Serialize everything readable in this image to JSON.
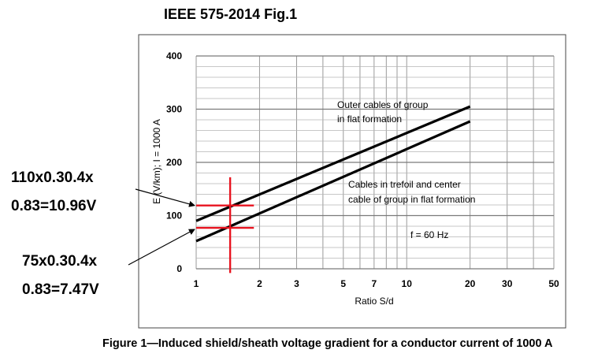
{
  "header": {
    "title": "IEEE 575-2014 Fig.1"
  },
  "caption": "Figure 1—Induced shield/sheath voltage gradient for a conductor current of 1000 A",
  "chart_data": {
    "type": "line",
    "xscale": "log",
    "xlabel": "Ratio S/d",
    "ylabel": "E (V/km); I = 1000 A",
    "xlim": [
      1,
      50
    ],
    "ylim": [
      0,
      400
    ],
    "x_ticks": [
      1,
      2,
      3,
      5,
      7,
      10,
      20,
      30,
      50
    ],
    "x_tick_labels": [
      "1",
      "2",
      "3",
      "5",
      "7",
      "10",
      "20",
      "30",
      "50"
    ],
    "y_ticks": [
      0,
      100,
      200,
      300,
      400
    ],
    "y_tick_labels": [
      "0",
      "100",
      "200",
      "300",
      "400"
    ],
    "grid": true,
    "series": [
      {
        "name": "Outer cables of group in flat formation",
        "label_lines": [
          "Outer cables of group",
          "in flat formation"
        ],
        "x": [
          1,
          20
        ],
        "y": [
          90,
          305
        ],
        "color": "#000000"
      },
      {
        "name": "Cables in trefoil and center cable of group in flat formation",
        "label_lines": [
          "Cables in trefoil and center",
          "cable of group in flat formation"
        ],
        "x": [
          1,
          20
        ],
        "y": [
          52,
          277
        ],
        "color": "#000000"
      }
    ],
    "frequency_note": "f = 60 Hz",
    "markers": {
      "color": "#e8131f",
      "vertical_x": 1.45,
      "vertical_y_range": [
        -8,
        172
      ],
      "horizontal": [
        {
          "y": 119,
          "x_range": [
            1,
            1.88
          ]
        },
        {
          "y": 77,
          "x_range": [
            1,
            1.88
          ]
        }
      ]
    }
  },
  "annotations": [
    {
      "lines": [
        "110x0.30.4x",
        "0.83=10.96V"
      ]
    },
    {
      "lines": [
        "75x0.30.4x",
        "0.83=7.47V"
      ]
    }
  ]
}
